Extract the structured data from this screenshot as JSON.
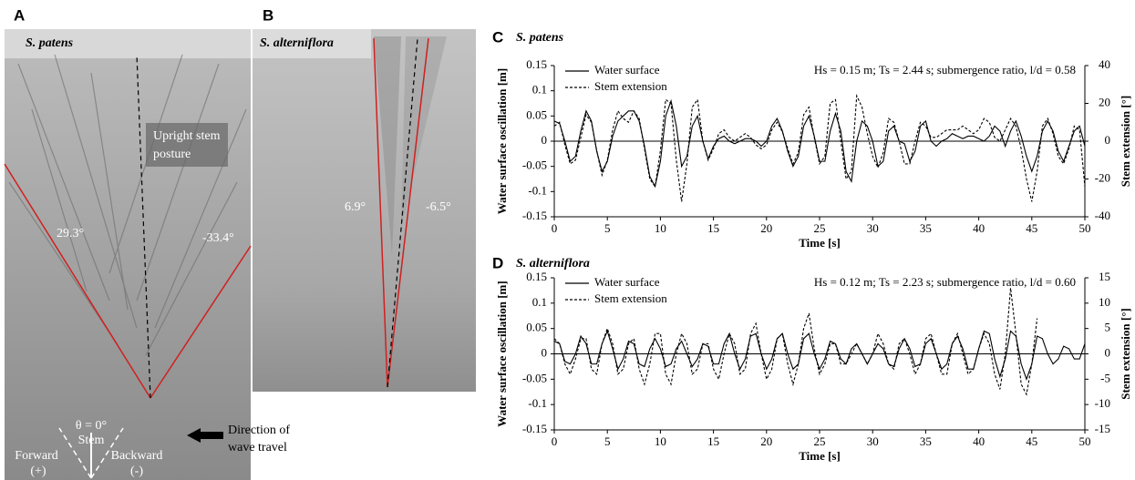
{
  "panels": [
    {
      "label": "A",
      "title": "S. patens",
      "annotations": [
        "Upright stem",
        "posture",
        "29.3°",
        "-33.4°",
        "θ = 0°",
        "Stem",
        "Forward",
        "(+)",
        "Backward",
        "(-)",
        "Direction of",
        "wave travel"
      ]
    },
    {
      "label": "B",
      "title": "S. alterniflora",
      "annotations": [
        "6.9°",
        "-6.5°"
      ]
    }
  ],
  "chart_data": [
    {
      "type": "line",
      "label": "C",
      "title": "S. patens",
      "annotation": "Hs = 0.15 m; Ts = 2.44 s; submergence ratio, l/d = 0.58",
      "x_label": "Time [s]",
      "y_label": "Water surface oscillation [m]",
      "y2_label": "Stem extension [°]",
      "xlim": [
        0,
        50
      ],
      "xticks": [
        0,
        5,
        10,
        15,
        20,
        25,
        30,
        35,
        40,
        45,
        50
      ],
      "ylim": [
        -0.15,
        0.15
      ],
      "yticks": [
        -0.15,
        -0.1,
        -0.05,
        0,
        0.05,
        0.1,
        0.15
      ],
      "y2lim": [
        -40,
        40
      ],
      "y2ticks": [
        -40,
        -20,
        0,
        20,
        40
      ],
      "x": [
        0,
        0.5,
        1,
        1.5,
        2,
        2.5,
        3,
        3.5,
        4,
        4.5,
        5,
        5.5,
        6,
        6.5,
        7,
        7.5,
        8,
        8.5,
        9,
        9.5,
        10,
        10.5,
        11,
        11.5,
        12,
        12.5,
        13,
        13.5,
        14,
        14.5,
        15,
        15.5,
        16,
        16.5,
        17,
        17.5,
        18,
        18.5,
        19,
        19.5,
        20,
        20.5,
        21,
        21.5,
        22,
        22.5,
        23,
        23.5,
        24,
        24.5,
        25,
        25.5,
        26,
        26.5,
        27,
        27.5,
        28,
        28.5,
        29,
        29.5,
        30,
        30.5,
        31,
        31.5,
        32,
        32.5,
        33,
        33.5,
        34,
        34.5,
        35,
        35.5,
        36,
        36.5,
        37,
        37.5,
        38,
        38.5,
        39,
        39.5,
        40,
        40.5,
        41,
        41.5,
        42,
        42.5,
        43,
        43.5,
        44,
        44.5,
        45,
        45.5,
        46,
        46.5,
        47,
        47.5,
        48,
        48.5,
        49,
        49.5,
        50
      ],
      "series": [
        {
          "name": "Water surface",
          "color": "#000000",
          "line_style": "solid",
          "axis": "y",
          "values": [
            0.04,
            0.035,
            0,
            -0.04,
            -0.03,
            0.02,
            0.06,
            0.04,
            -0.02,
            -0.06,
            -0.04,
            0.01,
            0.04,
            0.05,
            0.06,
            0.06,
            0.04,
            -0.01,
            -0.07,
            -0.09,
            -0.04,
            0.05,
            0.08,
            0.03,
            -0.05,
            -0.03,
            0.03,
            0.05,
            0,
            -0.035,
            -0.01,
            0.005,
            0.01,
            0,
            -0.005,
            0,
            0.005,
            0.005,
            0,
            -0.01,
            0,
            0.03,
            0.045,
            0.02,
            -0.02,
            -0.05,
            -0.03,
            0.03,
            0.05,
            0.01,
            -0.04,
            -0.04,
            0.02,
            0.055,
            0.02,
            -0.06,
            -0.08,
            0,
            0.04,
            0.03,
            0,
            -0.05,
            -0.04,
            0.02,
            0.03,
            0,
            -0.005,
            -0.04,
            -0.02,
            0.03,
            0.04,
            0,
            -0.01,
            0,
            0.005,
            0.015,
            0.01,
            0.005,
            0.01,
            0.01,
            0.005,
            0,
            0.01,
            0.03,
            0.02,
            -0.01,
            0.02,
            0.04,
            0.01,
            -0.03,
            -0.06,
            -0.03,
            0.02,
            0.04,
            0.02,
            -0.02,
            -0.04,
            -0.01,
            0.02,
            0.03,
            -0.01
          ]
        },
        {
          "name": "Stem extension",
          "color": "#000000",
          "line_style": "dashed",
          "axis": "y2",
          "values": [
            8,
            10,
            -2,
            -12,
            -10,
            2,
            14,
            10,
            -5,
            -18,
            -10,
            6,
            16,
            12,
            10,
            16,
            12,
            -4,
            -20,
            -24,
            -5,
            22,
            20,
            -10,
            -32,
            -12,
            18,
            22,
            0,
            -10,
            -4,
            4,
            6,
            2,
            0,
            2,
            4,
            2,
            -2,
            -4,
            -2,
            6,
            10,
            5,
            -4,
            -12,
            -6,
            14,
            18,
            2,
            -12,
            -8,
            20,
            22,
            0,
            -20,
            -16,
            24,
            18,
            4,
            -8,
            -14,
            -6,
            12,
            10,
            0,
            -12,
            -12,
            0,
            10,
            8,
            2,
            2,
            4,
            6,
            6,
            6,
            8,
            6,
            4,
            6,
            12,
            10,
            2,
            0,
            6,
            12,
            8,
            -4,
            -20,
            -32,
            -16,
            8,
            12,
            4,
            -8,
            -12,
            -4,
            8,
            6,
            -24
          ]
        }
      ]
    },
    {
      "type": "line",
      "label": "D",
      "title": "S. alterniflora",
      "annotation": "Hs = 0.12 m; Ts = 2.23 s; submergence ratio, l/d = 0.60",
      "x_label": "Time [s]",
      "y_label": "Water surface oscillation [m]",
      "y2_label": "Stem extension [°]",
      "xlim": [
        0,
        50
      ],
      "xticks": [
        0,
        5,
        10,
        15,
        20,
        25,
        30,
        35,
        40,
        45,
        50
      ],
      "ylim": [
        -0.15,
        0.15
      ],
      "yticks": [
        -0.15,
        -0.1,
        -0.05,
        0,
        0.05,
        0.1,
        0.15
      ],
      "y2lim": [
        -15,
        15
      ],
      "y2ticks": [
        -15,
        -10,
        -5,
        0,
        5,
        10,
        15
      ],
      "x": [
        0,
        0.5,
        1,
        1.5,
        2,
        2.5,
        3,
        3.5,
        4,
        4.5,
        5,
        5.5,
        6,
        6.5,
        7,
        7.5,
        8,
        8.5,
        9,
        9.5,
        10,
        10.5,
        11,
        11.5,
        12,
        12.5,
        13,
        13.5,
        14,
        14.5,
        15,
        15.5,
        16,
        16.5,
        17,
        17.5,
        18,
        18.5,
        19,
        19.5,
        20,
        20.5,
        21,
        21.5,
        22,
        22.5,
        23,
        23.5,
        24,
        24.5,
        25,
        25.5,
        26,
        26.5,
        27,
        27.5,
        28,
        28.5,
        29,
        29.5,
        30,
        30.5,
        31,
        31.5,
        32,
        32.5,
        33,
        33.5,
        34,
        34.5,
        35,
        35.5,
        36,
        36.5,
        37,
        37.5,
        38,
        38.5,
        39,
        39.5,
        40,
        40.5,
        41,
        41.5,
        42,
        42.5,
        43,
        43.5,
        44,
        44.5,
        45,
        45.5,
        46,
        46.5,
        47,
        47.5,
        48,
        48.5,
        49,
        49.5,
        50
      ],
      "series": [
        {
          "name": "Water surface",
          "color": "#000000",
          "line_style": "solid",
          "axis": "y",
          "values": [
            0.025,
            0.02,
            -0.015,
            -0.02,
            0,
            0.035,
            0.02,
            -0.02,
            -0.02,
            0.02,
            0.045,
            0.01,
            -0.03,
            -0.01,
            0.025,
            0.02,
            -0.02,
            -0.025,
            0.01,
            0.03,
            0.01,
            -0.025,
            -0.02,
            0.01,
            0.025,
            0,
            -0.025,
            -0.01,
            0.02,
            0.015,
            -0.02,
            -0.02,
            0.02,
            0.04,
            0,
            -0.03,
            -0.01,
            0.035,
            0.04,
            0,
            -0.03,
            -0.01,
            0.03,
            0.04,
            0,
            -0.03,
            -0.02,
            0.03,
            0.04,
            0,
            -0.03,
            -0.01,
            0.025,
            0.02,
            -0.01,
            -0.02,
            0.01,
            0.02,
            0,
            -0.02,
            0,
            0.02,
            0.01,
            -0.02,
            -0.025,
            0.01,
            0.03,
            0.01,
            -0.025,
            -0.02,
            0.02,
            0.03,
            0,
            -0.03,
            -0.02,
            0.02,
            0.035,
            0.01,
            -0.03,
            -0.03,
            0.01,
            0.045,
            0.04,
            -0.01,
            -0.045,
            -0.01,
            0.045,
            0.035,
            -0.02,
            -0.05,
            -0.02,
            0.035,
            0.03,
            0,
            -0.02,
            -0.01,
            0.015,
            0.01,
            -0.01,
            -0.01,
            0.02
          ]
        },
        {
          "name": "Stem extension",
          "color": "#000000",
          "line_style": "dashed",
          "axis": "y2",
          "values": [
            3,
            2,
            -2,
            -4,
            -1,
            3,
            3,
            -3,
            -4,
            2,
            5,
            2,
            -4,
            -3,
            2,
            3,
            -3,
            -6,
            -2,
            4,
            4,
            -4,
            -6,
            0,
            4,
            2,
            -4,
            -3,
            2,
            2,
            -3,
            -5,
            0,
            4,
            2,
            -4,
            -3,
            4,
            6,
            0,
            -5,
            -3,
            3,
            4,
            -2,
            -6,
            -2,
            5,
            8,
            1,
            -4,
            -2,
            2,
            2,
            -2,
            -2,
            0,
            2,
            0,
            -2,
            0,
            4,
            2,
            -2,
            -3,
            2,
            3,
            0,
            -4,
            -2,
            3,
            4,
            0,
            -4,
            -4,
            2,
            4,
            0,
            -4,
            -3,
            1,
            4,
            2,
            -4,
            -7,
            0,
            13,
            4,
            -6,
            -8,
            -2,
            7,
            null,
            null,
            null,
            null,
            null,
            null,
            null,
            null,
            null
          ]
        }
      ]
    }
  ]
}
